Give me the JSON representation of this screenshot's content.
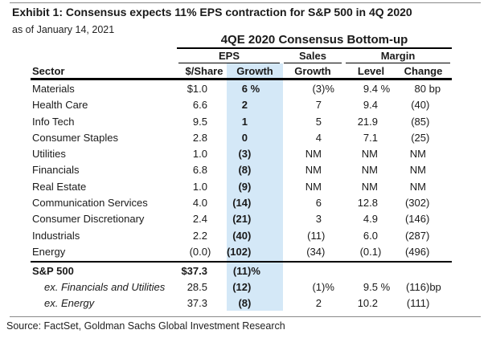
{
  "chart_data": {
    "type": "table",
    "exhibit_title": "Exhibit 1: Consensus expects 11% EPS contraction for S&P 500 in 4Q 2020",
    "as_of": "as of January 14, 2021",
    "table_title": "4QE 2020 Consensus Bottom-up",
    "column_groups": [
      {
        "label": "EPS",
        "columns": [
          "$/Share",
          "Growth"
        ]
      },
      {
        "label": "Sales",
        "columns": [
          "Growth"
        ]
      },
      {
        "label": "Margin",
        "columns": [
          "Level",
          "Change"
        ]
      }
    ],
    "columns": [
      "Sector",
      "$/Share",
      "Growth",
      "Growth",
      "Level",
      "Change"
    ],
    "rows": [
      {
        "sector": "Materials",
        "cells": [
          "$1.0",
          "6 %",
          "(3)%",
          "9.4 %",
          "80 bp"
        ]
      },
      {
        "sector": "Health Care",
        "cells": [
          "6.6",
          "2",
          "7",
          "9.4",
          "(40)"
        ]
      },
      {
        "sector": "Info Tech",
        "cells": [
          "9.5",
          "1",
          "5",
          "21.9",
          "(85)"
        ]
      },
      {
        "sector": "Consumer Staples",
        "cells": [
          "2.8",
          "0",
          "4",
          "7.1",
          "(25)"
        ]
      },
      {
        "sector": "Utilities",
        "cells": [
          "1.0",
          "(3)",
          "NM",
          "NM",
          "NM"
        ]
      },
      {
        "sector": "Financials",
        "cells": [
          "6.8",
          "(8)",
          "NM",
          "NM",
          "NM"
        ]
      },
      {
        "sector": "Real Estate",
        "cells": [
          "1.0",
          "(9)",
          "NM",
          "NM",
          "NM"
        ]
      },
      {
        "sector": "Communication Services",
        "cells": [
          "4.0",
          "(14)",
          "6",
          "12.8",
          "(302)"
        ]
      },
      {
        "sector": "Consumer Discretionary",
        "cells": [
          "2.4",
          "(21)",
          "3",
          "4.9",
          "(146)"
        ]
      },
      {
        "sector": "Industrials",
        "cells": [
          "2.2",
          "(40)",
          "(11)",
          "6.0",
          "(287)"
        ]
      },
      {
        "sector": "Energy",
        "cells": [
          "(0.0)",
          "(102)",
          "(34)",
          "(0.1)",
          "(496)"
        ]
      }
    ],
    "summary_rows": [
      {
        "sector": "S&P 500",
        "emphasis": "bold",
        "cells": [
          "$37.3",
          "(11)%",
          "",
          "",
          ""
        ]
      },
      {
        "sector": "ex. Financials and Utilities",
        "emphasis": "italic",
        "cells": [
          "28.5",
          "(12)",
          "(1)%",
          "9.5 %",
          "(116)bp"
        ]
      },
      {
        "sector": "ex. Energy",
        "emphasis": "italic",
        "cells": [
          "37.3",
          "(8)",
          "2",
          "10.2",
          "(111)"
        ]
      }
    ],
    "highlight": {
      "column": "EPS Growth",
      "color": "#d4e8f7"
    },
    "source": "Source: FactSet, Goldman Sachs Global Investment Research"
  }
}
